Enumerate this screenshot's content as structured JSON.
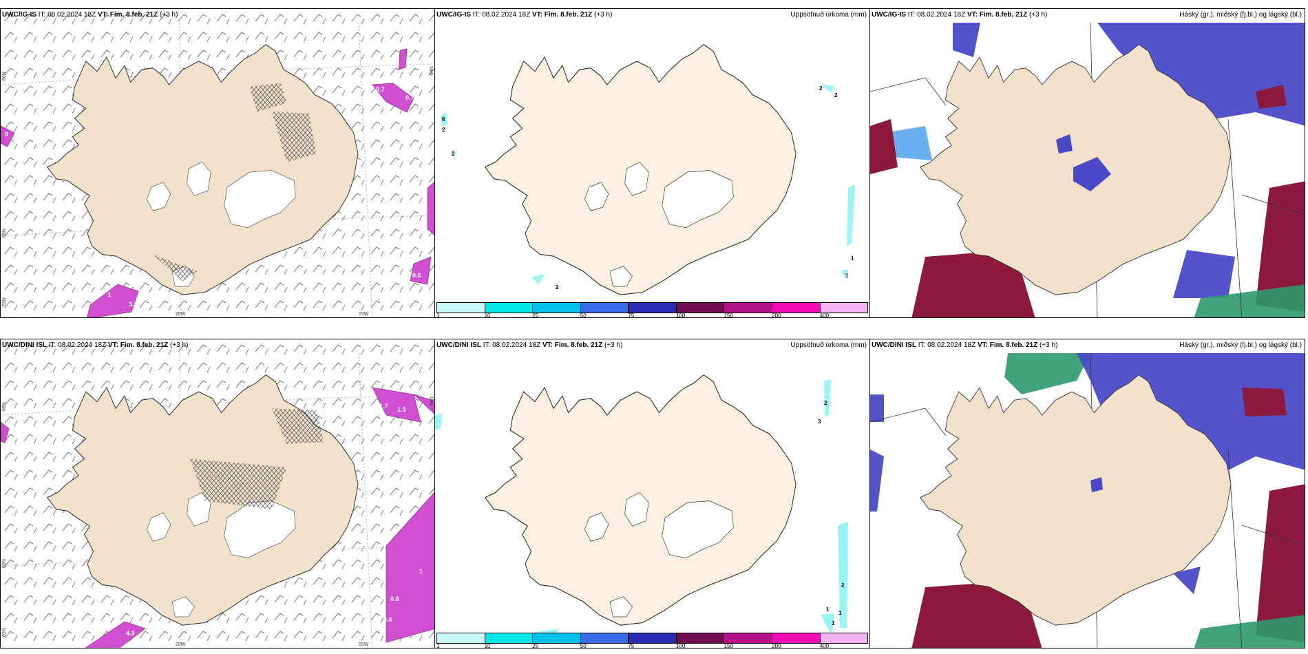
{
  "colors": {
    "land": "#f2e2cc",
    "land_light": "#fdf0e1",
    "precip_cyan": "#9af5f5",
    "mag": "#d14fd1",
    "cloud_high": "#4a4ac8",
    "cloud_mid": "#5aa6ee",
    "cloud_low": "#8c1a3c",
    "cloud_green": "#2f9a6e"
  },
  "panels": [
    {
      "model": "UWC/IG-IS",
      "it_label": "IT:",
      "it_value": "08.02.2024 18Z",
      "vt_label": "VT:",
      "vt_value": "Fim. 8.feb. 21Z",
      "offset": "(+3 h)",
      "right_title": "",
      "lat_labels": [
        "66N",
        "65N",
        "64N",
        "63N"
      ],
      "lon_labels": [
        "20W",
        "15W"
      ],
      "contour_labels": [
        "0.7",
        "0.7",
        "0.4",
        "0.6",
        "3.6",
        "1",
        "0"
      ]
    },
    {
      "model": "UWC/IG-IS",
      "it_label": "IT:",
      "it_value": "08.02.2024 18Z",
      "vt_label": "VT:",
      "vt_value": "Fim. 8.feb. 21Z",
      "offset": "(+3 h)",
      "right_title": "Uppsöfnuð úrkoma (mm)",
      "contour_labels": [
        "6",
        "2",
        "2",
        "2",
        "2",
        "2",
        "1",
        "1"
      ]
    },
    {
      "model": "UWC/IG-IS",
      "it_label": "IT:",
      "it_value": "08.02.2024 18Z",
      "vt_label": "VT:",
      "vt_value": "Fim. 8.feb. 21Z",
      "offset": "(+3 h)",
      "right_title": "Háský (gr.), miðský (fj.bl.) og lágský (bl.)"
    },
    {
      "model": "UWC/DINI ISL",
      "it_label": "IT:",
      "it_value": "08.02.2024 18Z",
      "vt_label": "VT:",
      "vt_value": "Fim. 8.feb. 21Z",
      "offset": "(+3 h)",
      "right_title": "",
      "lat_labels": [
        "66N",
        "65N",
        "64N",
        "63N"
      ],
      "lon_labels": [
        "20W",
        "15W"
      ],
      "contour_labels": [
        "1.7",
        "1.5",
        "0.8",
        "0.6",
        "4.9",
        "1"
      ]
    },
    {
      "model": "UWC/DINI ISL",
      "it_label": "IT:",
      "it_value": "08.02.2024 18Z",
      "vt_label": "VT:",
      "vt_value": "Fim. 8.feb. 21Z",
      "offset": "(+3 h)",
      "right_title": "Uppsöfnuð úrkoma (mm)",
      "contour_labels": [
        "2",
        "3",
        "2",
        "1",
        "1",
        "1"
      ]
    },
    {
      "model": "UWC/DINI ISL",
      "it_label": "IT:",
      "it_value": "08.02.2024 18Z",
      "vt_label": "VT:",
      "vt_value": "Fim. 8.feb. 21Z",
      "offset": "(+3 h)",
      "right_title": "Háský (gr.), miðský (fj.bl.) og lágský (bl.)"
    }
  ],
  "legend": {
    "ticks": [
      "1",
      "10",
      "25",
      "50",
      "75",
      "100",
      "150",
      "200",
      "400"
    ],
    "colors": [
      "#c8fafa",
      "#00e5e5",
      "#00c0e8",
      "#3a6ee8",
      "#2a2ab4",
      "#6e0c4e",
      "#b4108c",
      "#f00cb4",
      "#f5b4f5"
    ]
  }
}
